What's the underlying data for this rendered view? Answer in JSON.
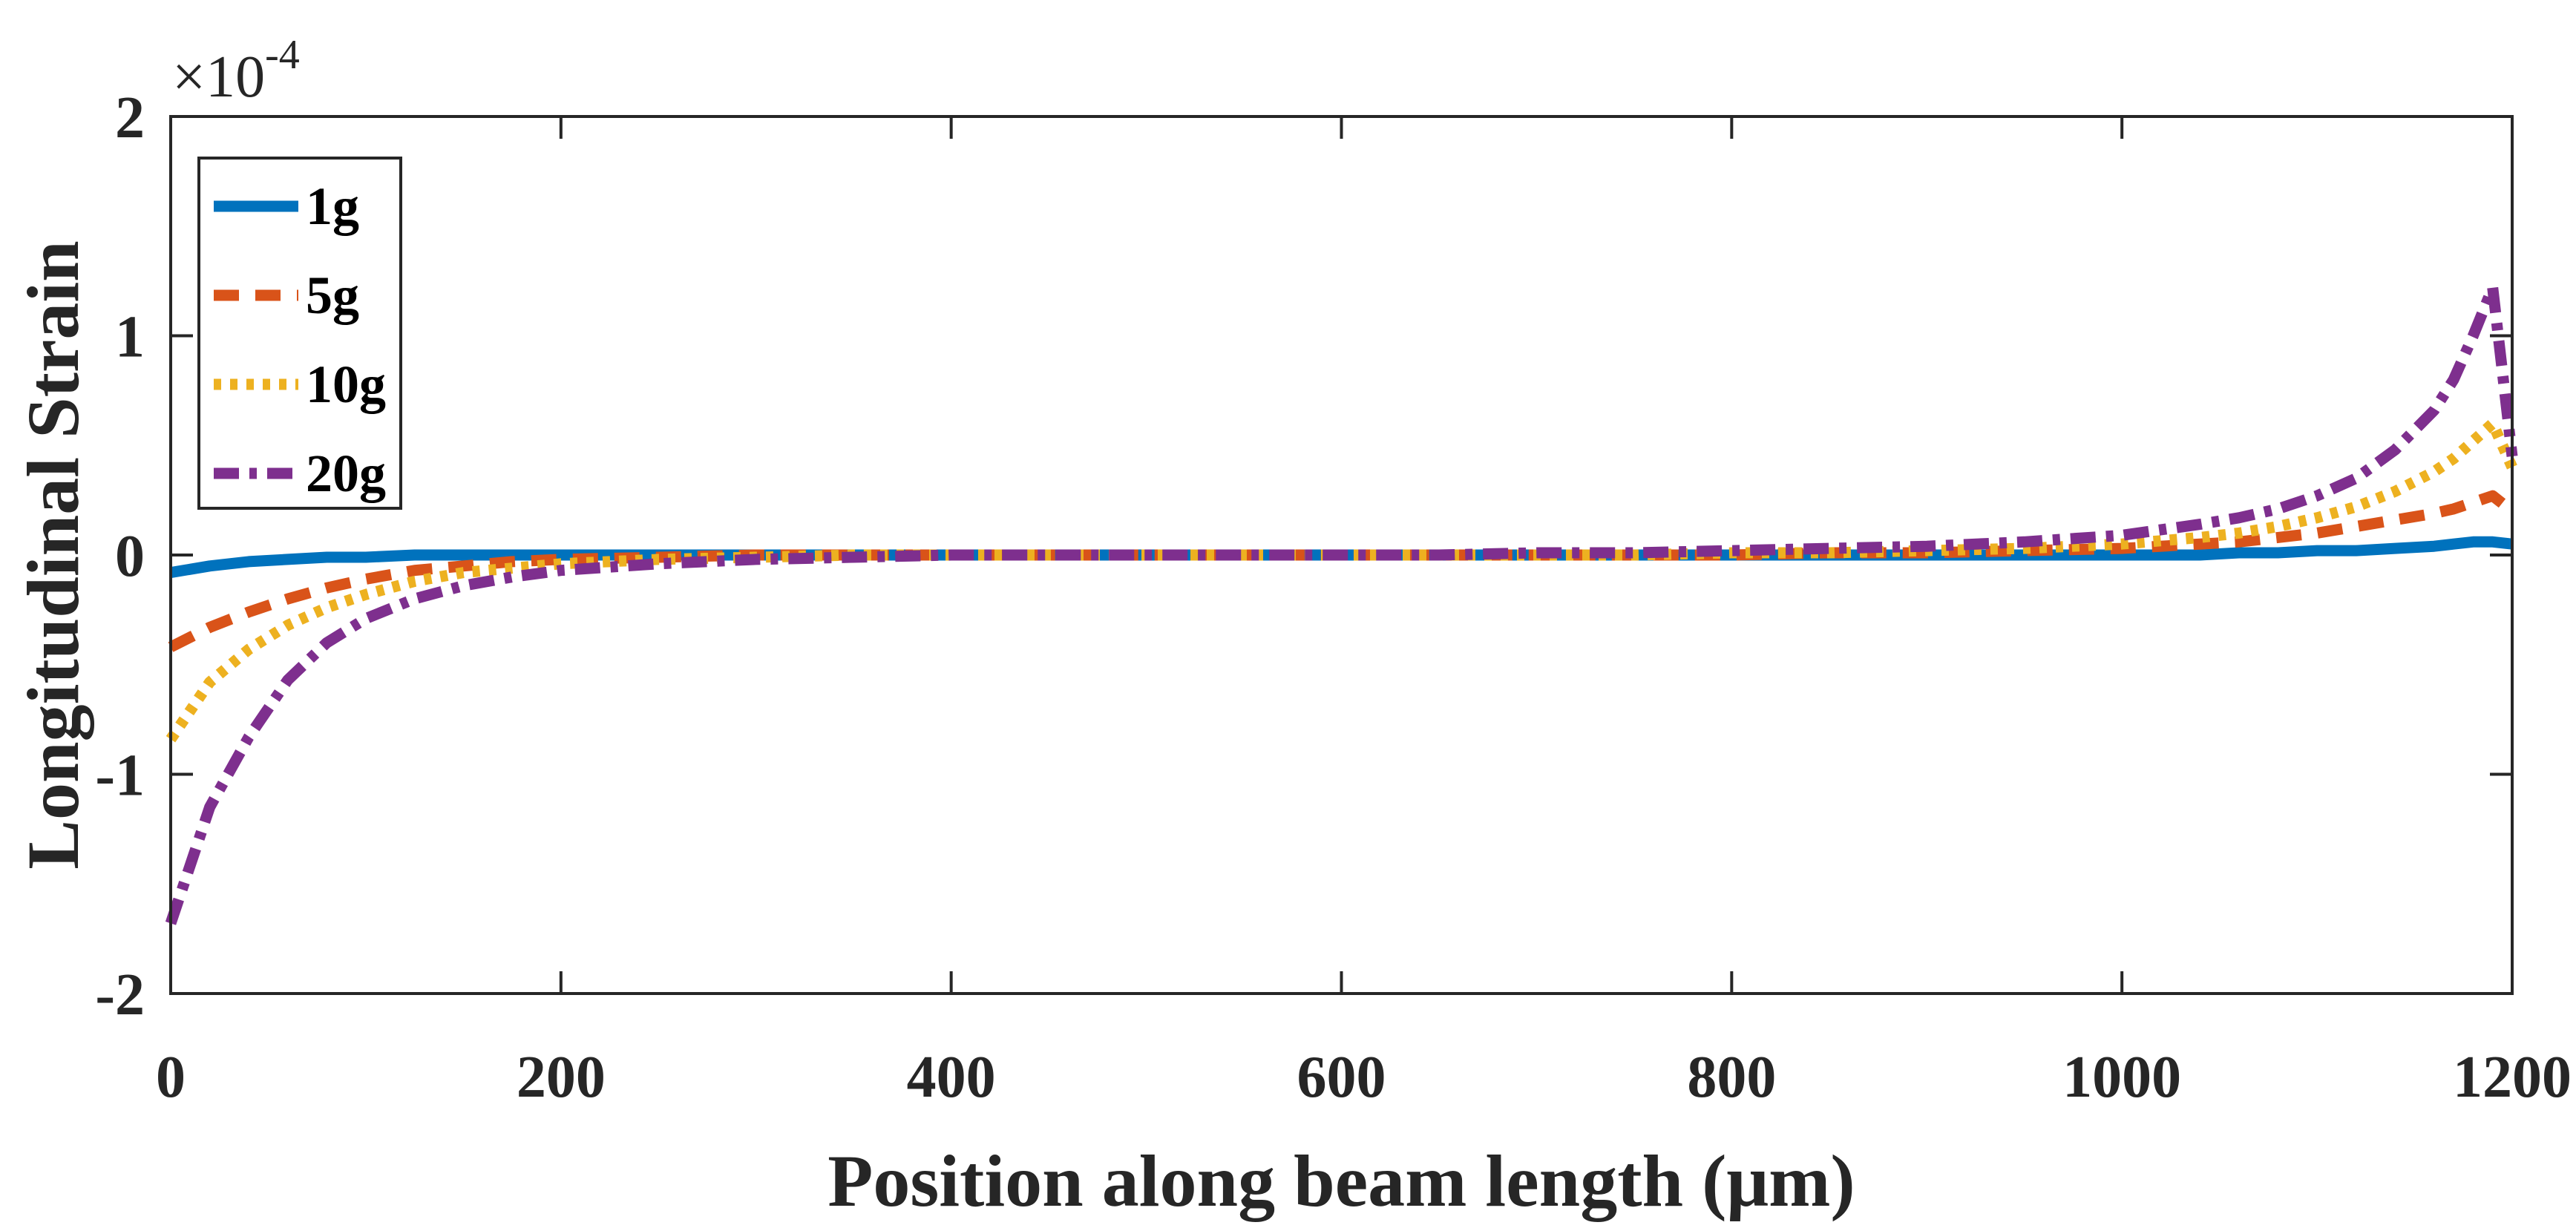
{
  "chart_data": {
    "type": "line",
    "xlabel": "Position along beam length (μm)",
    "ylabel": "Longitudinal Strain",
    "xlim": [
      0,
      1200
    ],
    "ylim": [
      -2,
      2
    ],
    "xticks": [
      0,
      200,
      400,
      600,
      800,
      1000,
      1200
    ],
    "yticks": [
      -2,
      -1,
      0,
      1,
      2
    ],
    "y_exponent_prefix": "×10",
    "y_exponent": "-4",
    "grid": false,
    "legend_position": "top-left",
    "x": [
      0,
      20,
      40,
      60,
      80,
      100,
      125,
      150,
      175,
      200,
      250,
      300,
      350,
      400,
      450,
      500,
      550,
      600,
      650,
      700,
      750,
      800,
      850,
      900,
      950,
      1000,
      1040,
      1060,
      1080,
      1100,
      1120,
      1140,
      1160,
      1170,
      1180,
      1190,
      1200
    ],
    "series": [
      {
        "name": "1g",
        "color": "#0072BD",
        "dash": "solid",
        "values": [
          -0.08,
          -0.05,
          -0.03,
          -0.02,
          -0.01,
          -0.01,
          0,
          0,
          0,
          0,
          0,
          0,
          0,
          0,
          0,
          0,
          0,
          0,
          0,
          0,
          0,
          0,
          0,
          0,
          0,
          0,
          0,
          0.01,
          0.01,
          0.02,
          0.02,
          0.03,
          0.04,
          0.05,
          0.06,
          0.06,
          0.05
        ]
      },
      {
        "name": "5g",
        "color": "#D95319",
        "dash": "dashed",
        "values": [
          -0.42,
          -0.33,
          -0.26,
          -0.2,
          -0.15,
          -0.11,
          -0.07,
          -0.05,
          -0.03,
          -0.02,
          -0.01,
          0,
          0,
          0,
          0,
          0,
          0,
          0,
          0,
          0,
          0,
          0,
          0.01,
          0.01,
          0.02,
          0.03,
          0.05,
          0.06,
          0.08,
          0.1,
          0.13,
          0.16,
          0.19,
          0.21,
          0.24,
          0.27,
          0.2
        ]
      },
      {
        "name": "10g",
        "color": "#EDB120",
        "dash": "dotted",
        "values": [
          -0.84,
          -0.58,
          -0.43,
          -0.32,
          -0.24,
          -0.18,
          -0.12,
          -0.08,
          -0.06,
          -0.04,
          -0.02,
          -0.01,
          0,
          0,
          0,
          0,
          0,
          0,
          0,
          0,
          0,
          0.01,
          0.01,
          0.02,
          0.03,
          0.05,
          0.08,
          0.1,
          0.13,
          0.17,
          0.22,
          0.29,
          0.38,
          0.44,
          0.52,
          0.6,
          0.4
        ]
      },
      {
        "name": "20g",
        "color": "#7E2F8E",
        "dash": "dashdot",
        "values": [
          -1.68,
          -1.15,
          -0.83,
          -0.57,
          -0.4,
          -0.29,
          -0.2,
          -0.14,
          -0.1,
          -0.07,
          -0.04,
          -0.02,
          -0.01,
          0,
          0,
          0,
          0,
          0,
          0,
          0.01,
          0.01,
          0.02,
          0.03,
          0.04,
          0.06,
          0.09,
          0.14,
          0.17,
          0.21,
          0.27,
          0.35,
          0.48,
          0.66,
          0.8,
          1.0,
          1.22,
          0.45
        ]
      }
    ]
  }
}
